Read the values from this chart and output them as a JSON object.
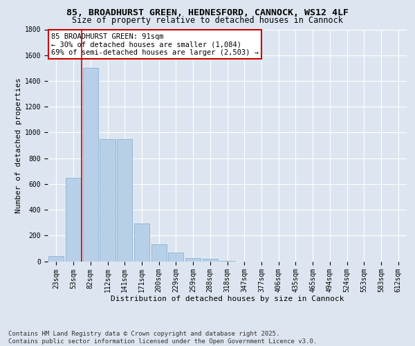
{
  "title_line1": "85, BROADHURST GREEN, HEDNESFORD, CANNOCK, WS12 4LF",
  "title_line2": "Size of property relative to detached houses in Cannock",
  "xlabel": "Distribution of detached houses by size in Cannock",
  "ylabel": "Number of detached properties",
  "categories": [
    "23sqm",
    "53sqm",
    "82sqm",
    "112sqm",
    "141sqm",
    "171sqm",
    "200sqm",
    "229sqm",
    "259sqm",
    "288sqm",
    "318sqm",
    "347sqm",
    "377sqm",
    "406sqm",
    "435sqm",
    "465sqm",
    "494sqm",
    "524sqm",
    "553sqm",
    "583sqm",
    "612sqm"
  ],
  "values": [
    40,
    650,
    1500,
    950,
    950,
    295,
    130,
    65,
    25,
    20,
    5,
    0,
    0,
    0,
    0,
    0,
    0,
    0,
    0,
    0,
    0
  ],
  "bar_color": "#b8cfe8",
  "bar_edge_color": "#7aaad0",
  "vline_color": "#cc0000",
  "vline_x_index": 2,
  "annotation_text": "85 BROADHURST GREEN: 91sqm\n← 30% of detached houses are smaller (1,084)\n69% of semi-detached houses are larger (2,503) →",
  "annotation_box_edgecolor": "#cc0000",
  "annotation_bg": "#ffffff",
  "ylim": [
    0,
    1800
  ],
  "yticks": [
    0,
    200,
    400,
    600,
    800,
    1000,
    1200,
    1400,
    1600,
    1800
  ],
  "background_color": "#dde6f0",
  "plot_bg_color": "#dde6f0",
  "grid_color": "#ffffff",
  "footer_text": "Contains HM Land Registry data © Crown copyright and database right 2025.\nContains public sector information licensed under the Open Government Licence v3.0.",
  "title_fontsize": 9.5,
  "subtitle_fontsize": 8.5,
  "axis_label_fontsize": 8,
  "tick_fontsize": 7,
  "annotation_fontsize": 7.5,
  "footer_fontsize": 6.5
}
